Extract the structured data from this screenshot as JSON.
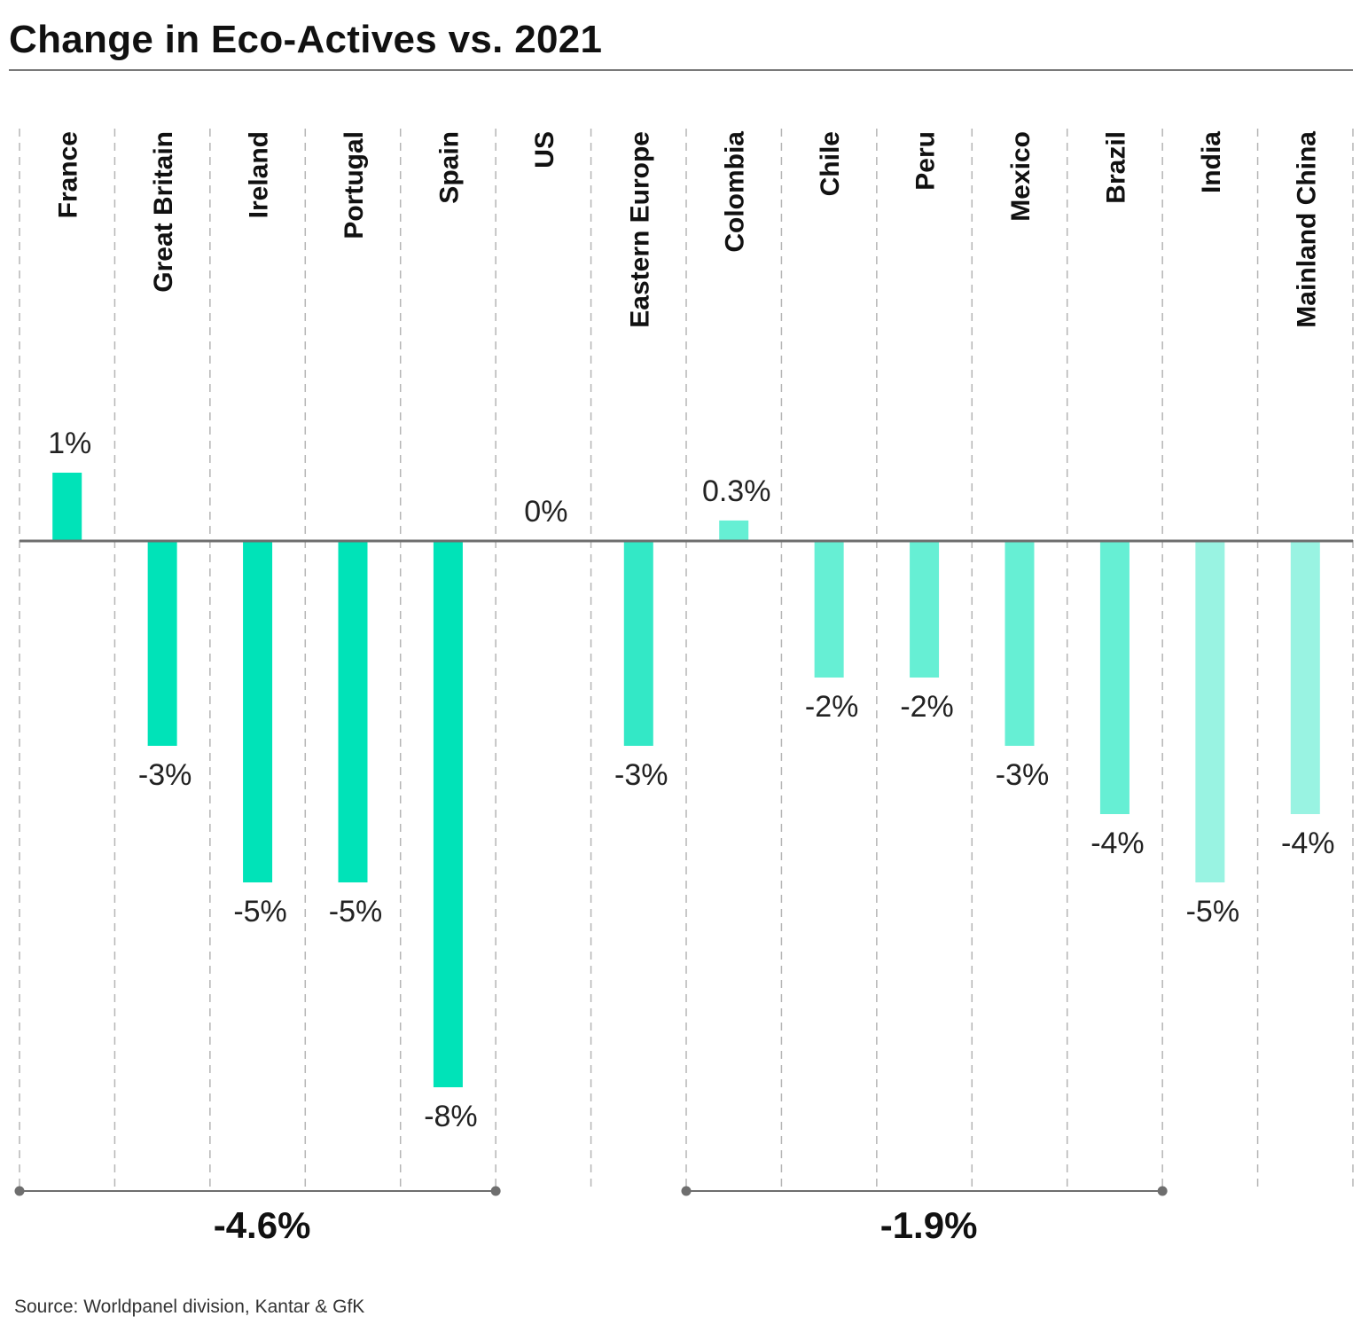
{
  "title": "Change in Eco-Actives vs. 2021",
  "source": "Source: Worldpanel division, Kantar & GfK",
  "chart_data": {
    "type": "bar",
    "title": "Change in Eco-Actives vs. 2021",
    "categories": [
      "France",
      "Great Britain",
      "Ireland",
      "Portugal",
      "Spain",
      "US",
      "Eastern Europe",
      "Colombia",
      "Chile",
      "Peru",
      "Mexico",
      "Brazil",
      "India",
      "Mainland China"
    ],
    "values": [
      1,
      -3,
      -5,
      -5,
      -8,
      0,
      -3,
      0.3,
      -2,
      -2,
      -3,
      -4,
      -5,
      -4
    ],
    "value_labels": [
      "1%",
      "-3%",
      "-5%",
      "-5%",
      "-8%",
      "0%",
      "-3%",
      "0.3%",
      "-2%",
      "-2%",
      "-3%",
      "-4%",
      "-5%",
      "-4%"
    ],
    "bar_colors": [
      "#00e3b8",
      "#00e3b8",
      "#00e3b8",
      "#00e3b8",
      "#00e3b8",
      "#00e3b8",
      "#33e8c6",
      "#66efd4",
      "#66efd4",
      "#66efd4",
      "#66efd4",
      "#66efd4",
      "#99f3e2",
      "#99f3e2"
    ],
    "ylim": [
      -9.6,
      5.7
    ],
    "grid": "vertical dashed separators",
    "groups": [
      {
        "label": "-4.6%",
        "from": "France",
        "to": "Spain"
      },
      {
        "label": "-1.9%",
        "from": "Colombia",
        "to": "Brazil"
      }
    ]
  }
}
